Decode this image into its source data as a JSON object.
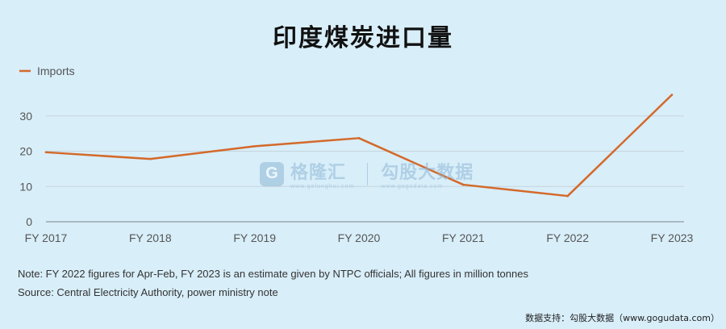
{
  "title": "印度煤炭进口量",
  "watermark": {
    "brand": "格隆汇",
    "brand_sub": "www.gelonghui.com",
    "partner": "勾股大数据",
    "partner_sub": "www.gogudata.com"
  },
  "notes": {
    "note": "Note: FY 2022 figures for Apr-Feb, FY 2023 is an estimate given by NTPC officials; All figures in million tonnes",
    "source": "Source: Central Electricity Authority, power ministry note"
  },
  "footer": "数据支持：勾股大数据（www.gogudata.com）",
  "colors": {
    "line": "#d4692a",
    "grid": "#c5d3dc",
    "axis_text": "#555555",
    "background": "#d8eef9"
  },
  "chart_data": {
    "type": "line",
    "categories": [
      "FY 2017",
      "FY 2018",
      "FY 2019",
      "FY 2020",
      "FY 2021",
      "FY 2022",
      "FY 2023"
    ],
    "series": [
      {
        "name": "Imports",
        "values": [
          19.7,
          17.8,
          21.4,
          23.7,
          10.5,
          7.3,
          36.0
        ]
      }
    ],
    "yticks": [
      0,
      10,
      20,
      30
    ],
    "ylim": [
      0,
      40
    ],
    "grid": true,
    "legend_position": "top-left"
  }
}
